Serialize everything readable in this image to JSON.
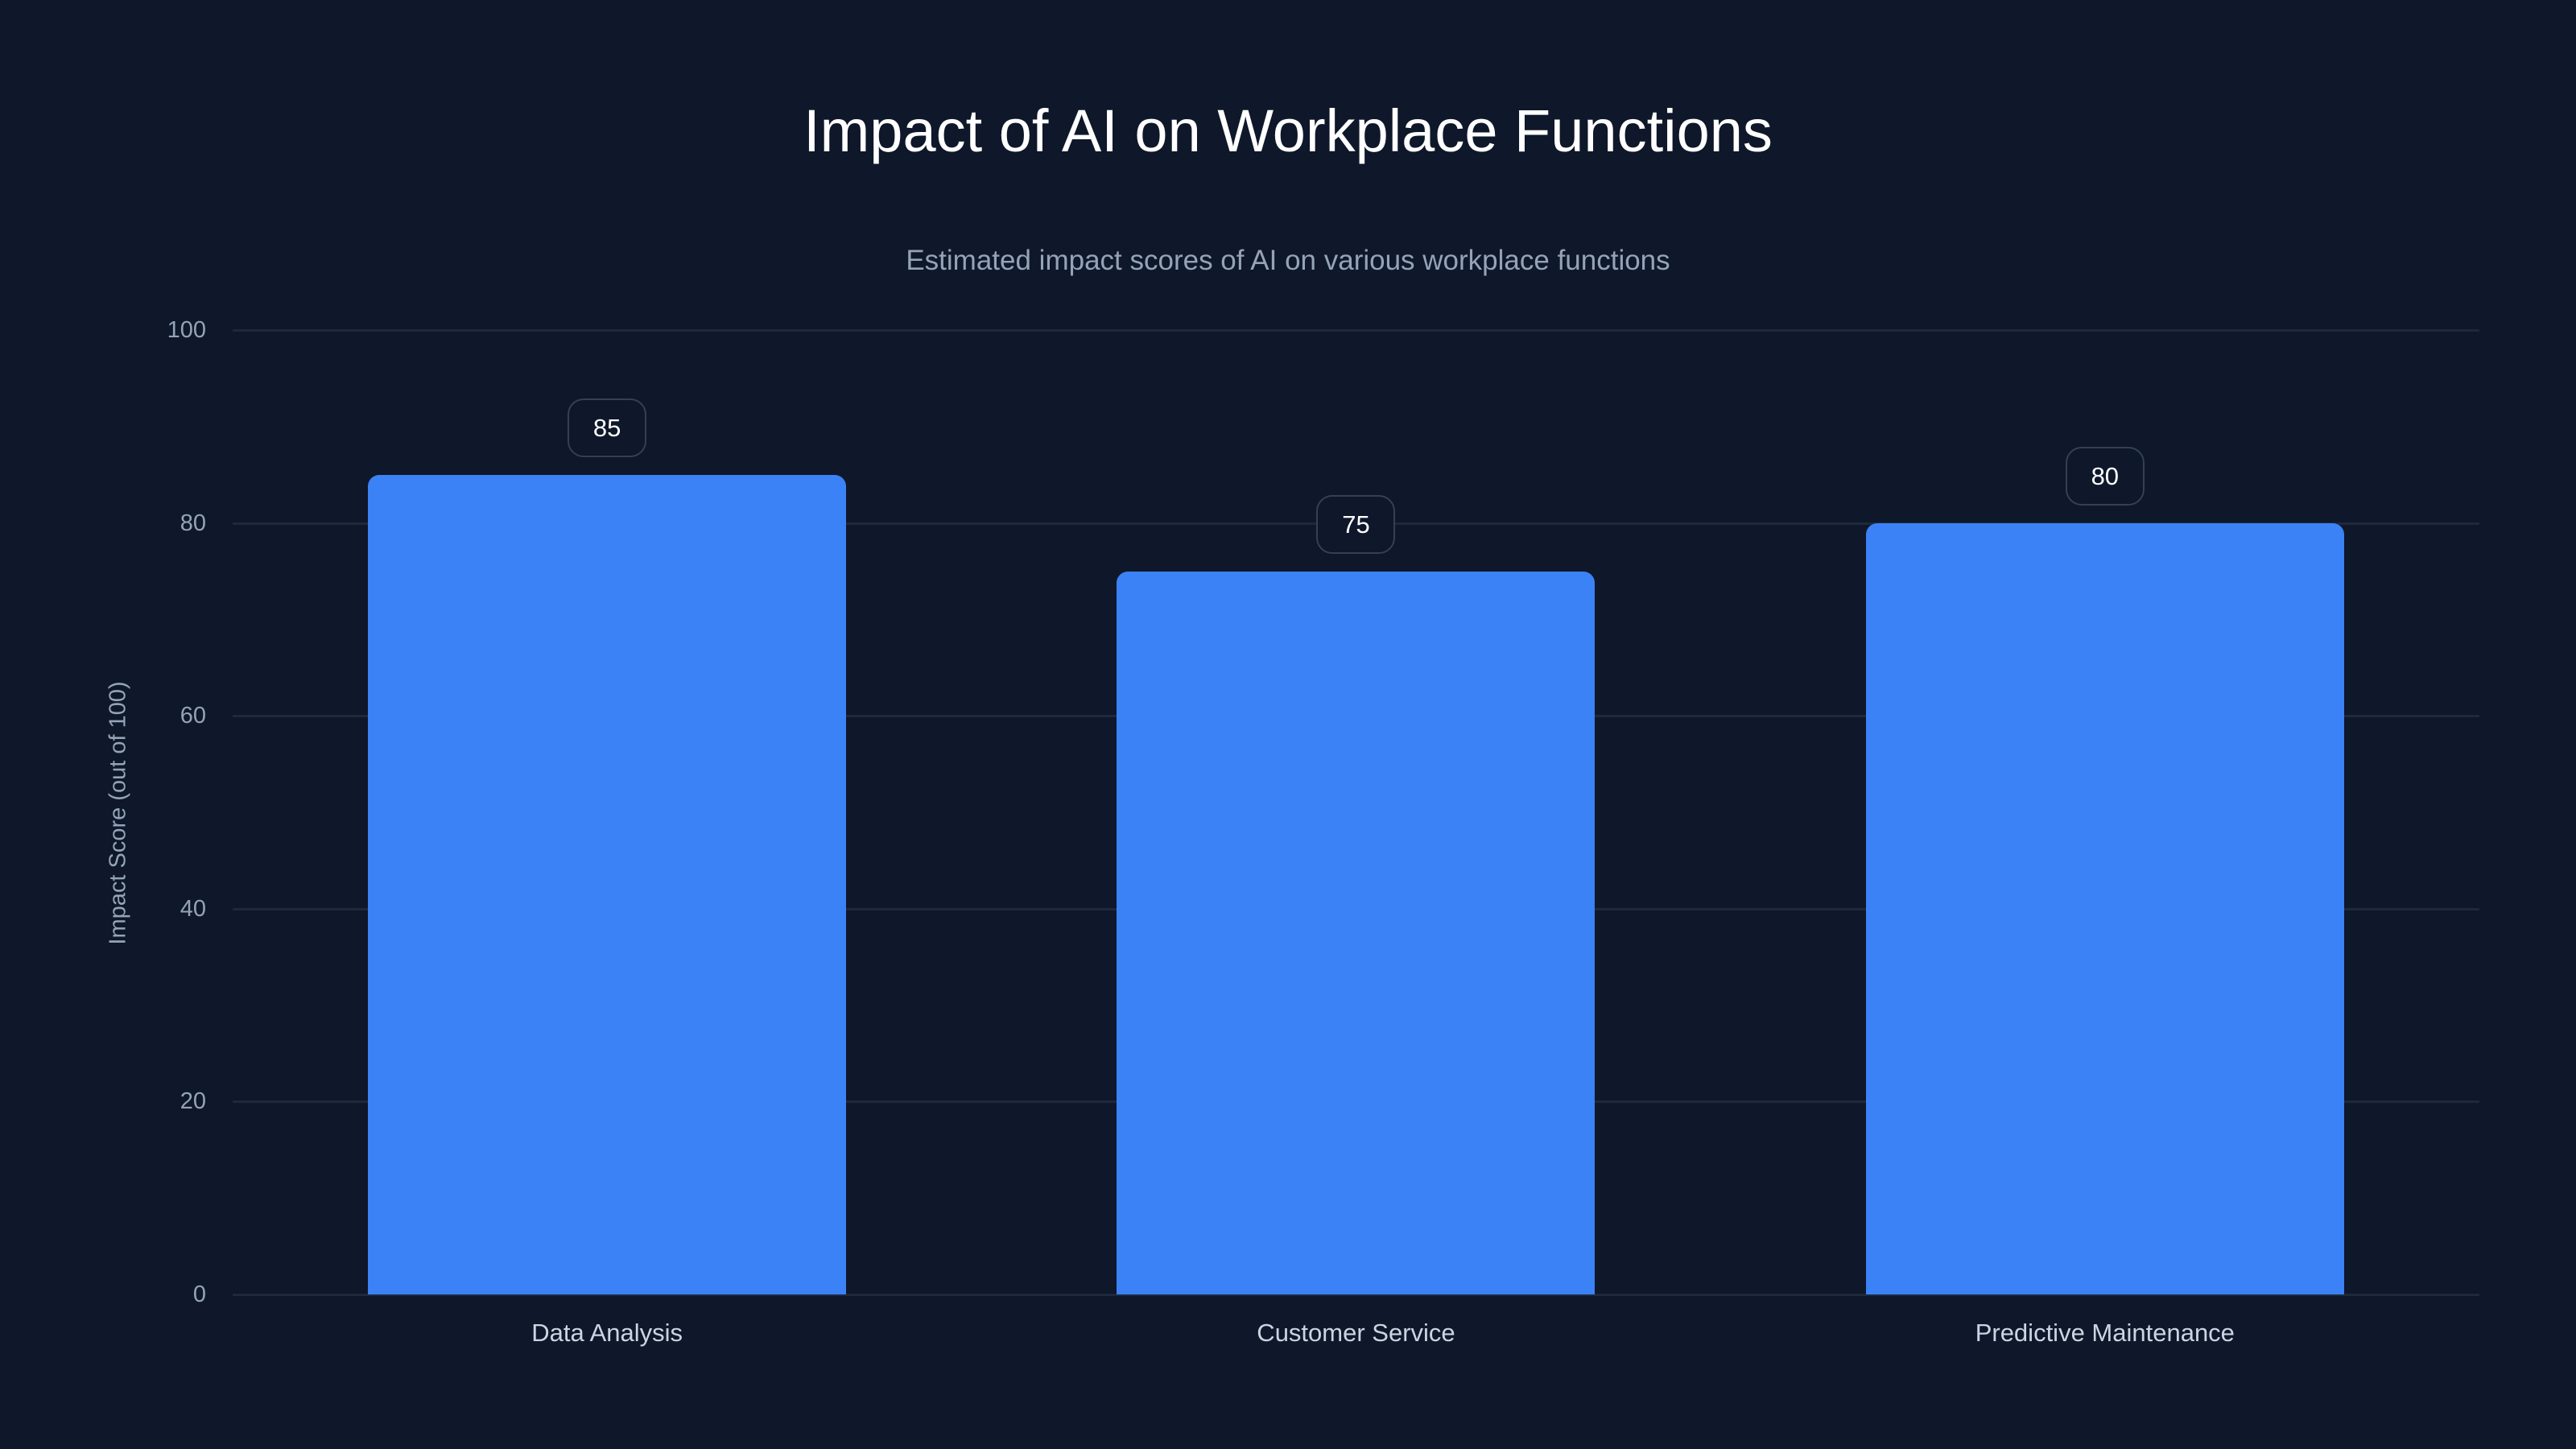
{
  "chart_data": {
    "type": "bar",
    "title": "Impact of AI on Workplace Functions",
    "subtitle": "Estimated impact scores of AI on various workplace functions",
    "xlabel": "",
    "ylabel": "Impact Score (out of 100)",
    "categories": [
      "Data Analysis",
      "Customer Service",
      "Predictive Maintenance"
    ],
    "values": [
      85,
      75,
      80
    ],
    "value_labels": [
      "85",
      "75",
      "80"
    ],
    "ylim": [
      0,
      100
    ],
    "yticks": [
      0,
      20,
      40,
      60,
      80,
      100
    ],
    "ytick_labels": [
      "0",
      "20",
      "40",
      "60",
      "80",
      "100"
    ],
    "grid": true,
    "legend": "none",
    "colors": {
      "background": "#0f172a",
      "bar": "#3b82f6",
      "gridline": "#1e293b",
      "title": "#ffffff",
      "subtitle": "#94a3b8",
      "tick_label": "#94a3b8",
      "category_label": "#cbd5e1",
      "badge_border": "#334155",
      "badge_text": "#ffffff"
    }
  }
}
